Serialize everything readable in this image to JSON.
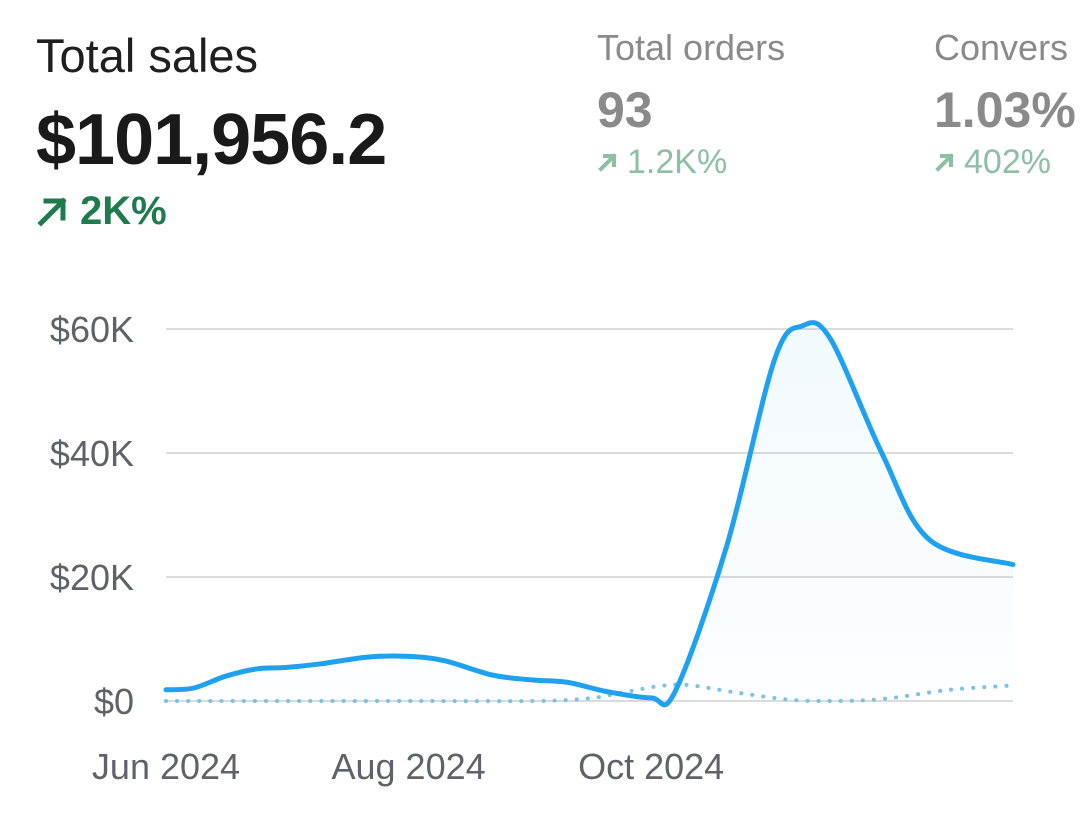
{
  "metrics": {
    "total_sales": {
      "label": "Total sales",
      "value": "$101,956.2",
      "delta": "2K%"
    },
    "total_orders": {
      "label": "Total orders",
      "value": "93",
      "delta": "1.2K%"
    },
    "conversion": {
      "label": "Convers",
      "value": "1.03%",
      "delta": "402%"
    }
  },
  "colors": {
    "primary_line": "#1ea1ef",
    "comparison_line": "#7cc1e6",
    "positive_main": "#1f7a4d",
    "positive_faded": "#8cbfa4",
    "grid": "#dcdcdc"
  },
  "chart_data": {
    "type": "area",
    "ylim": [
      0,
      60000
    ],
    "y_ticks": [
      {
        "value": 0,
        "label": "$0"
      },
      {
        "value": 20000,
        "label": "$20K"
      },
      {
        "value": 40000,
        "label": "$40K"
      },
      {
        "value": 60000,
        "label": "$60K"
      }
    ],
    "x_ticks": [
      {
        "date": "2024-06-01",
        "label": "Jun 2024"
      },
      {
        "date": "2024-08-01",
        "label": "Aug 2024"
      },
      {
        "date": "2024-10-01",
        "label": "Oct 2024"
      }
    ],
    "x_range": [
      "2024-06-01",
      "2024-12-31"
    ],
    "grid": true,
    "series": [
      {
        "style": "solid-filled",
        "points": [
          [
            "2024-06-01",
            1800
          ],
          [
            "2024-06-08",
            2100
          ],
          [
            "2024-06-16",
            4000
          ],
          [
            "2024-06-24",
            5200
          ],
          [
            "2024-07-01",
            5400
          ],
          [
            "2024-07-10",
            6000
          ],
          [
            "2024-07-22",
            7100
          ],
          [
            "2024-08-01",
            7200
          ],
          [
            "2024-08-10",
            6500
          ],
          [
            "2024-08-22",
            4200
          ],
          [
            "2024-09-01",
            3400
          ],
          [
            "2024-09-10",
            3000
          ],
          [
            "2024-09-20",
            1500
          ],
          [
            "2024-10-01",
            500
          ],
          [
            "2024-10-07",
            1500
          ],
          [
            "2024-10-20",
            25000
          ],
          [
            "2024-11-01",
            55000
          ],
          [
            "2024-11-08",
            60500
          ],
          [
            "2024-11-15",
            58500
          ],
          [
            "2024-11-28",
            40000
          ],
          [
            "2024-12-10",
            26000
          ],
          [
            "2024-12-31",
            22000
          ]
        ]
      },
      {
        "style": "dotted",
        "points": [
          [
            "2024-06-01",
            0
          ],
          [
            "2024-07-01",
            0
          ],
          [
            "2024-08-01",
            0
          ],
          [
            "2024-09-01",
            0
          ],
          [
            "2024-09-15",
            400
          ],
          [
            "2024-09-25",
            1500
          ],
          [
            "2024-10-03",
            2400
          ],
          [
            "2024-10-10",
            2600
          ],
          [
            "2024-10-22",
            1400
          ],
          [
            "2024-11-05",
            200
          ],
          [
            "2024-11-15",
            0
          ],
          [
            "2024-11-28",
            300
          ],
          [
            "2024-12-15",
            1800
          ],
          [
            "2024-12-31",
            2500
          ]
        ]
      }
    ]
  }
}
